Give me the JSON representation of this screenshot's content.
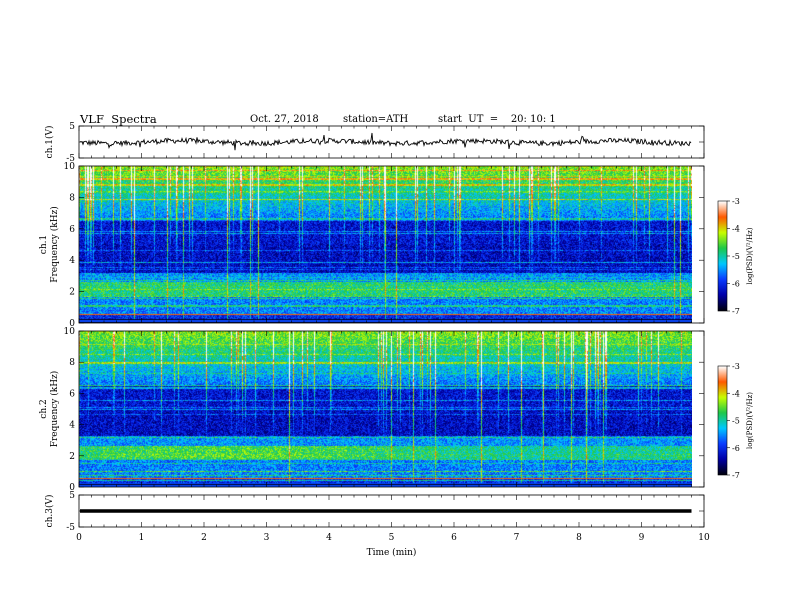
{
  "header": {
    "title": "VLF  Spectra",
    "date": "Oct. 27, 2018",
    "station": "station=ATH",
    "start_ut": "start  UT  =    20: 10: 1"
  },
  "chart_data": [
    {
      "type": "line",
      "panel": "ch1-waveform",
      "ylabel": "ch.1(V)",
      "yticks": [
        5,
        0,
        -5
      ],
      "ytick_labels": [
        "5",
        "",
        "-5"
      ],
      "ylim": [
        -5,
        5
      ],
      "xlim": [
        0,
        10
      ],
      "series_color": "#000000"
    },
    {
      "type": "heatmap",
      "panel": "ch1-spectrogram",
      "ylabel_top": "ch.1",
      "ylabel": "Frequency  (kHz)",
      "yticks": [
        0,
        2,
        4,
        6,
        8,
        10
      ],
      "ylim": [
        0,
        10
      ],
      "xlim": [
        0,
        10
      ],
      "data_extent_min": 9.8,
      "colorbar": {
        "label": "log(PSD)(V²/Hz)",
        "ticks": [
          -3,
          -4,
          -5,
          -6,
          -7
        ],
        "range": [
          -7,
          -3
        ]
      }
    },
    {
      "type": "heatmap",
      "panel": "ch2-spectrogram",
      "ylabel_top": "ch.2",
      "ylabel": "Frequency  (kHz)",
      "yticks": [
        0,
        2,
        4,
        6,
        8,
        10
      ],
      "ylim": [
        0,
        10
      ],
      "xlim": [
        0,
        10
      ],
      "data_extent_min": 9.8,
      "colorbar": {
        "label": "log(PSD)(V²/Hz)",
        "ticks": [
          -3,
          -4,
          -5,
          -6,
          -7
        ],
        "range": [
          -7,
          -3
        ]
      }
    },
    {
      "type": "line",
      "panel": "ch3-waveform",
      "ylabel": "ch.3(V)",
      "yticks": [
        5,
        0,
        -5
      ],
      "ytick_labels": [
        "5",
        "",
        "-5"
      ],
      "ylim": [
        -5,
        5
      ],
      "xlim": [
        0,
        10
      ],
      "series_color": "#000000"
    }
  ],
  "xaxis": {
    "label": "Time  (min)",
    "ticks": [
      0,
      1,
      2,
      3,
      4,
      5,
      6,
      7,
      8,
      9,
      10
    ]
  },
  "colors": {
    "colormap": [
      "#000010",
      "#0000a8",
      "#0a3cff",
      "#00c8ff",
      "#1ec84a",
      "#c8ff00",
      "#ff5a00",
      "#ffffff"
    ]
  }
}
